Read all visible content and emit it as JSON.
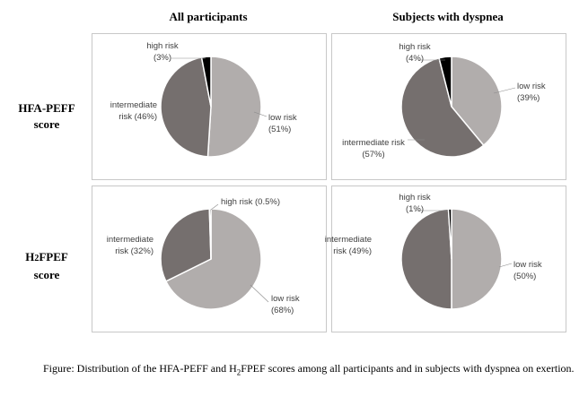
{
  "headers": {
    "col1": "All participants",
    "col2": "Subjects with dyspnea"
  },
  "rows": {
    "row1": {
      "line1": "HFA-PEFF",
      "line2": "score"
    },
    "row2": {
      "prefix": "H",
      "sub": "2",
      "suffix": "FPEF",
      "line2": "score"
    }
  },
  "colors": {
    "low_risk": "#b1adac",
    "intermediate_risk": "#756f6e",
    "high_risk": "#000000"
  },
  "chart_data": [
    {
      "type": "pie",
      "panel": "HFA-PEFF score / All participants",
      "slices": [
        {
          "category": "low risk",
          "value": 51,
          "label": "low risk (51%)",
          "label_lines": [
            "low risk",
            "(51%)"
          ]
        },
        {
          "category": "intermediate risk",
          "value": 46,
          "label": "intermediate risk (46%)",
          "label_lines": [
            "intermediate",
            "risk (46%)"
          ]
        },
        {
          "category": "high risk",
          "value": 3,
          "label": "high risk (3%)",
          "label_lines": [
            "high risk",
            "(3%)"
          ]
        }
      ]
    },
    {
      "type": "pie",
      "panel": "HFA-PEFF score / Subjects with dyspnea",
      "slices": [
        {
          "category": "low risk",
          "value": 39,
          "label": "low risk (39%)",
          "label_lines": [
            "low risk",
            "(39%)"
          ]
        },
        {
          "category": "intermediate risk",
          "value": 57,
          "label": "intermediate risk (57%)",
          "label_lines": [
            "intermediate risk",
            "(57%)"
          ]
        },
        {
          "category": "high risk",
          "value": 4,
          "label": "high risk (4%)",
          "label_lines": [
            "high risk",
            "(4%)"
          ]
        }
      ]
    },
    {
      "type": "pie",
      "panel": "H2FPEF score / All participants",
      "slices": [
        {
          "category": "low risk",
          "value": 68,
          "label": "low risk (68%)",
          "label_lines": [
            "low risk",
            "(68%)"
          ]
        },
        {
          "category": "intermediate risk",
          "value": 32,
          "label": "intermediate risk (32%)",
          "label_lines": [
            "intermediate",
            "risk (32%)"
          ]
        },
        {
          "category": "high risk",
          "value": 0.5,
          "label": "high risk (0.5%)",
          "label_lines": [
            "high risk (0.5%)"
          ]
        }
      ]
    },
    {
      "type": "pie",
      "panel": "H2FPEF score / Subjects with dyspnea",
      "slices": [
        {
          "category": "low risk",
          "value": 50,
          "label": "low risk (50%)",
          "label_lines": [
            "low risk",
            "(50%)"
          ]
        },
        {
          "category": "intermediate risk",
          "value": 49,
          "label": "intermediate risk (49%)",
          "label_lines": [
            "intermediate",
            "risk (49%)"
          ]
        },
        {
          "category": "high risk",
          "value": 1,
          "label": "high risk (1%)",
          "label_lines": [
            "high risk",
            "(1%)"
          ]
        }
      ]
    }
  ],
  "caption": {
    "part1": "Figure: Distribution of the HFA-PEFF and H",
    "sub": "2",
    "part2": "FPEF scores among all participants and in subjects with dyspnea on exertion."
  }
}
